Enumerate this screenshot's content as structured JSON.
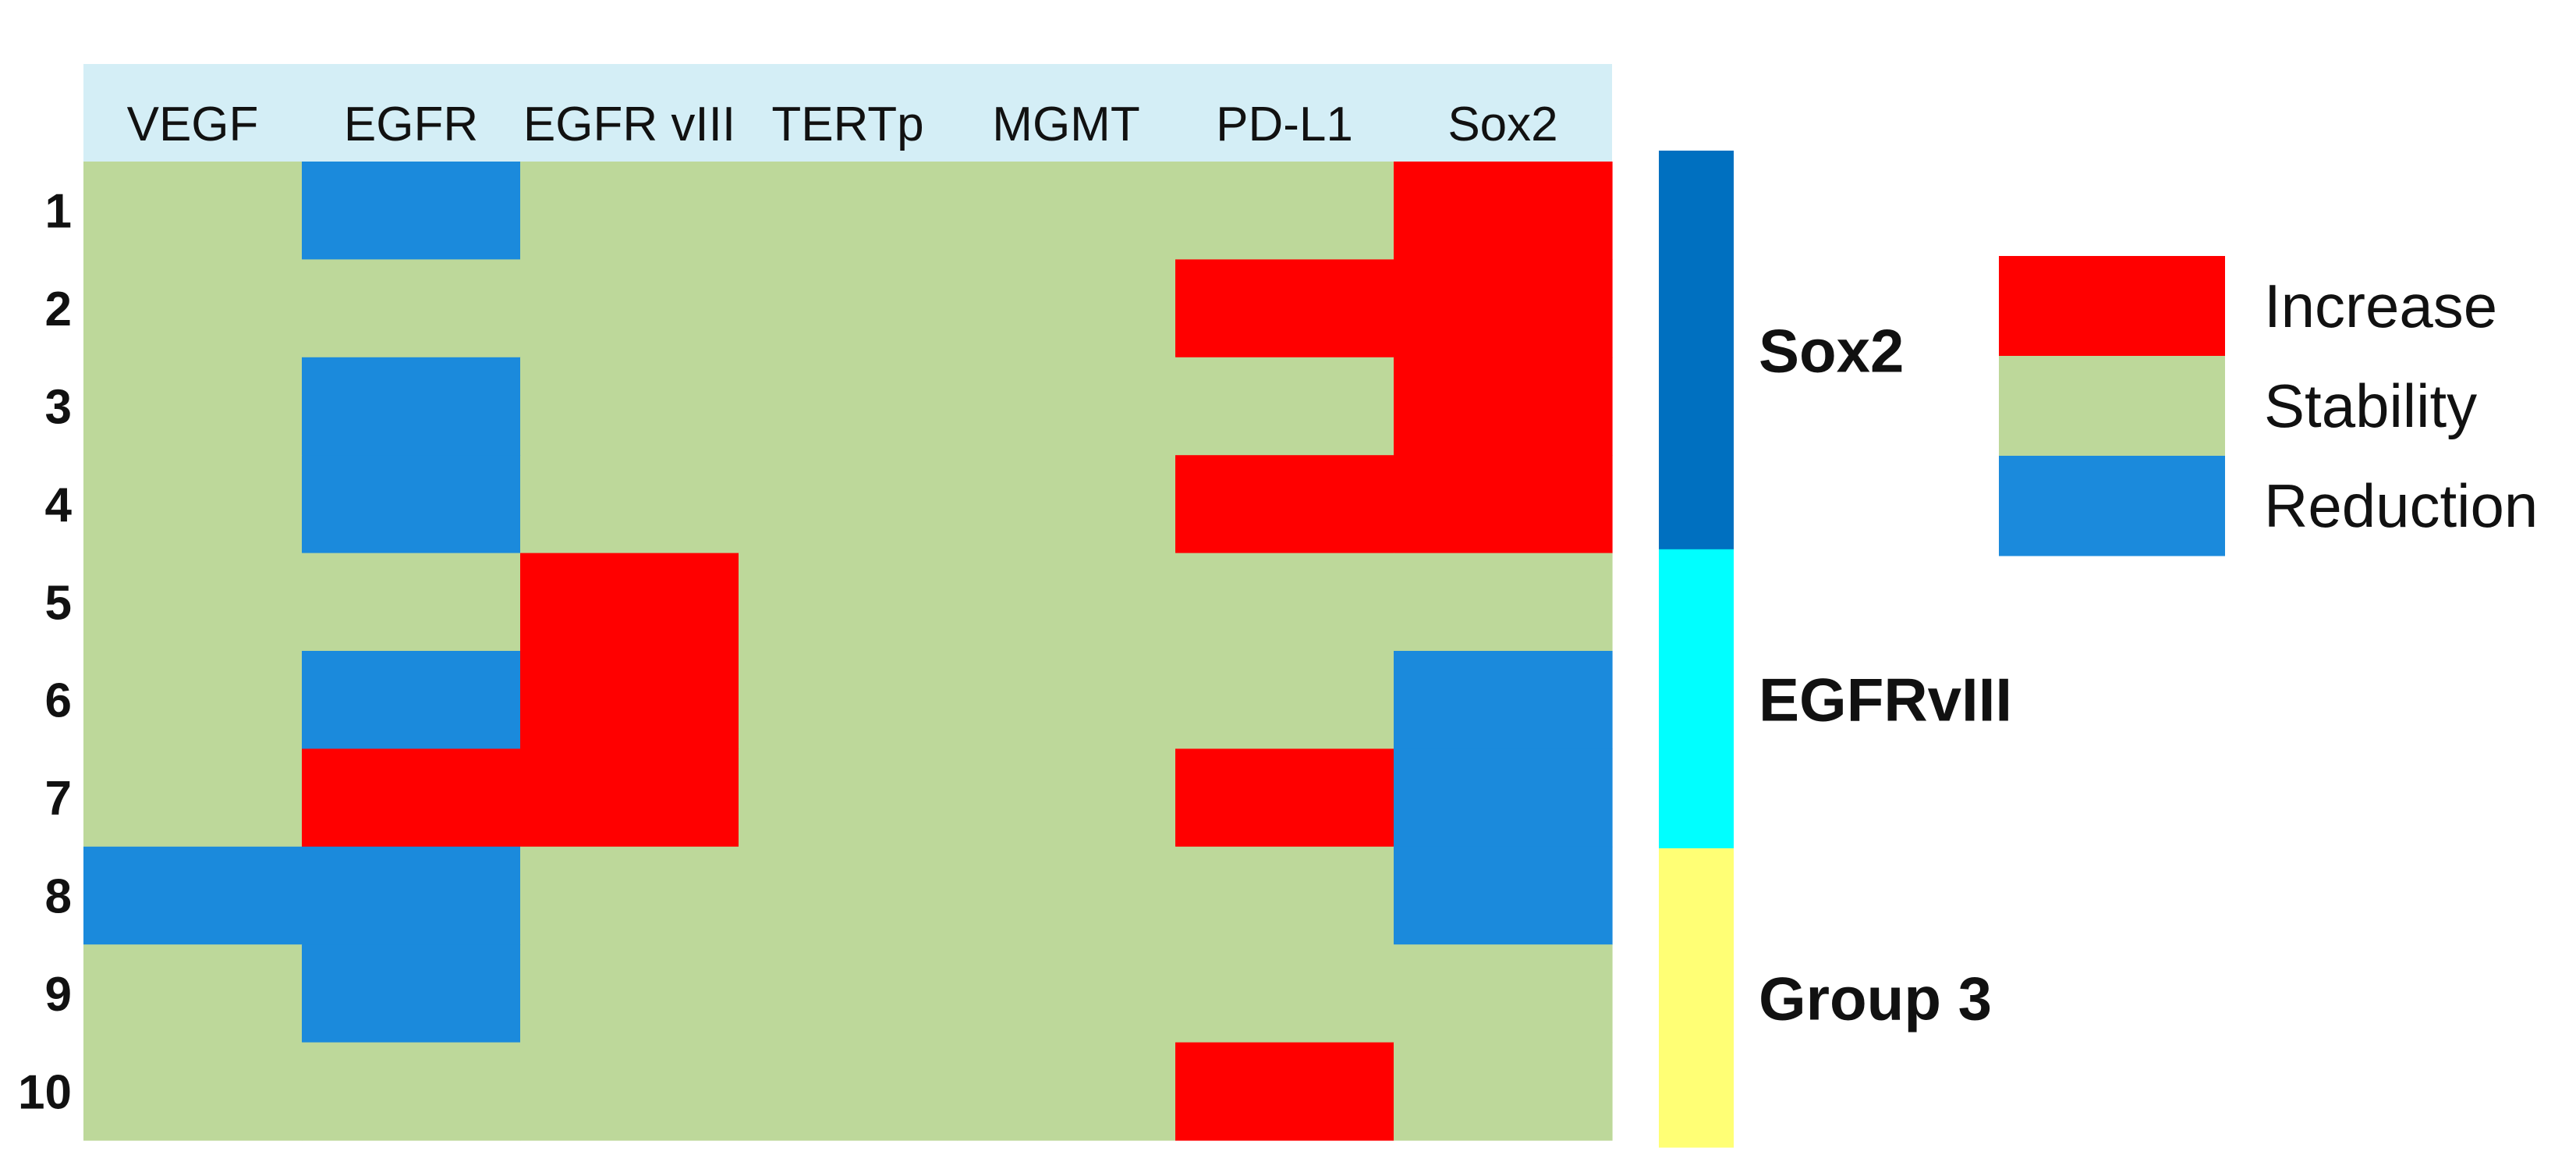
{
  "chart_data": {
    "type": "heatmap",
    "columns": [
      "VEGF",
      "EGFR",
      "EGFR vIII",
      "TERTp",
      "MGMT",
      "PD-L1",
      "Sox2"
    ],
    "rows": [
      "1",
      "2",
      "3",
      "4",
      "5",
      "6",
      "7",
      "8",
      "9",
      "10"
    ],
    "values": [
      [
        "Stability",
        "Reduction",
        "Stability",
        "Stability",
        "Stability",
        "Stability",
        "Increase"
      ],
      [
        "Stability",
        "Stability",
        "Stability",
        "Stability",
        "Stability",
        "Increase",
        "Increase"
      ],
      [
        "Stability",
        "Reduction",
        "Stability",
        "Stability",
        "Stability",
        "Stability",
        "Increase"
      ],
      [
        "Stability",
        "Reduction",
        "Stability",
        "Stability",
        "Stability",
        "Increase",
        "Increase"
      ],
      [
        "Stability",
        "Stability",
        "Increase",
        "Stability",
        "Stability",
        "Stability",
        "Stability"
      ],
      [
        "Stability",
        "Reduction",
        "Increase",
        "Stability",
        "Stability",
        "Stability",
        "Reduction"
      ],
      [
        "Stability",
        "Increase",
        "Increase",
        "Stability",
        "Stability",
        "Increase",
        "Reduction"
      ],
      [
        "Reduction",
        "Reduction",
        "Stability",
        "Stability",
        "Stability",
        "Stability",
        "Reduction"
      ],
      [
        "Stability",
        "Reduction",
        "Stability",
        "Stability",
        "Stability",
        "Stability",
        "Stability"
      ],
      [
        "Stability",
        "Stability",
        "Stability",
        "Stability",
        "Stability",
        "Increase",
        "Stability"
      ]
    ],
    "groups": [
      {
        "name": "Sox2",
        "rows": [
          "1",
          "2",
          "3",
          "4"
        ],
        "color": "#0070C0"
      },
      {
        "name": "EGFRvIII",
        "rows": [
          "5",
          "6",
          "7"
        ],
        "color": "#00FFFF"
      },
      {
        "name": "Group 3",
        "rows": [
          "8",
          "9",
          "10"
        ],
        "color": "#FFFF75"
      }
    ],
    "legend": [
      {
        "label": "Increase",
        "color": "#FF0000"
      },
      {
        "label": "Stability",
        "color": "#BDD89A"
      },
      {
        "label": "Reduction",
        "color": "#1B8ADC"
      }
    ],
    "header_color": "#D4EEF6"
  }
}
